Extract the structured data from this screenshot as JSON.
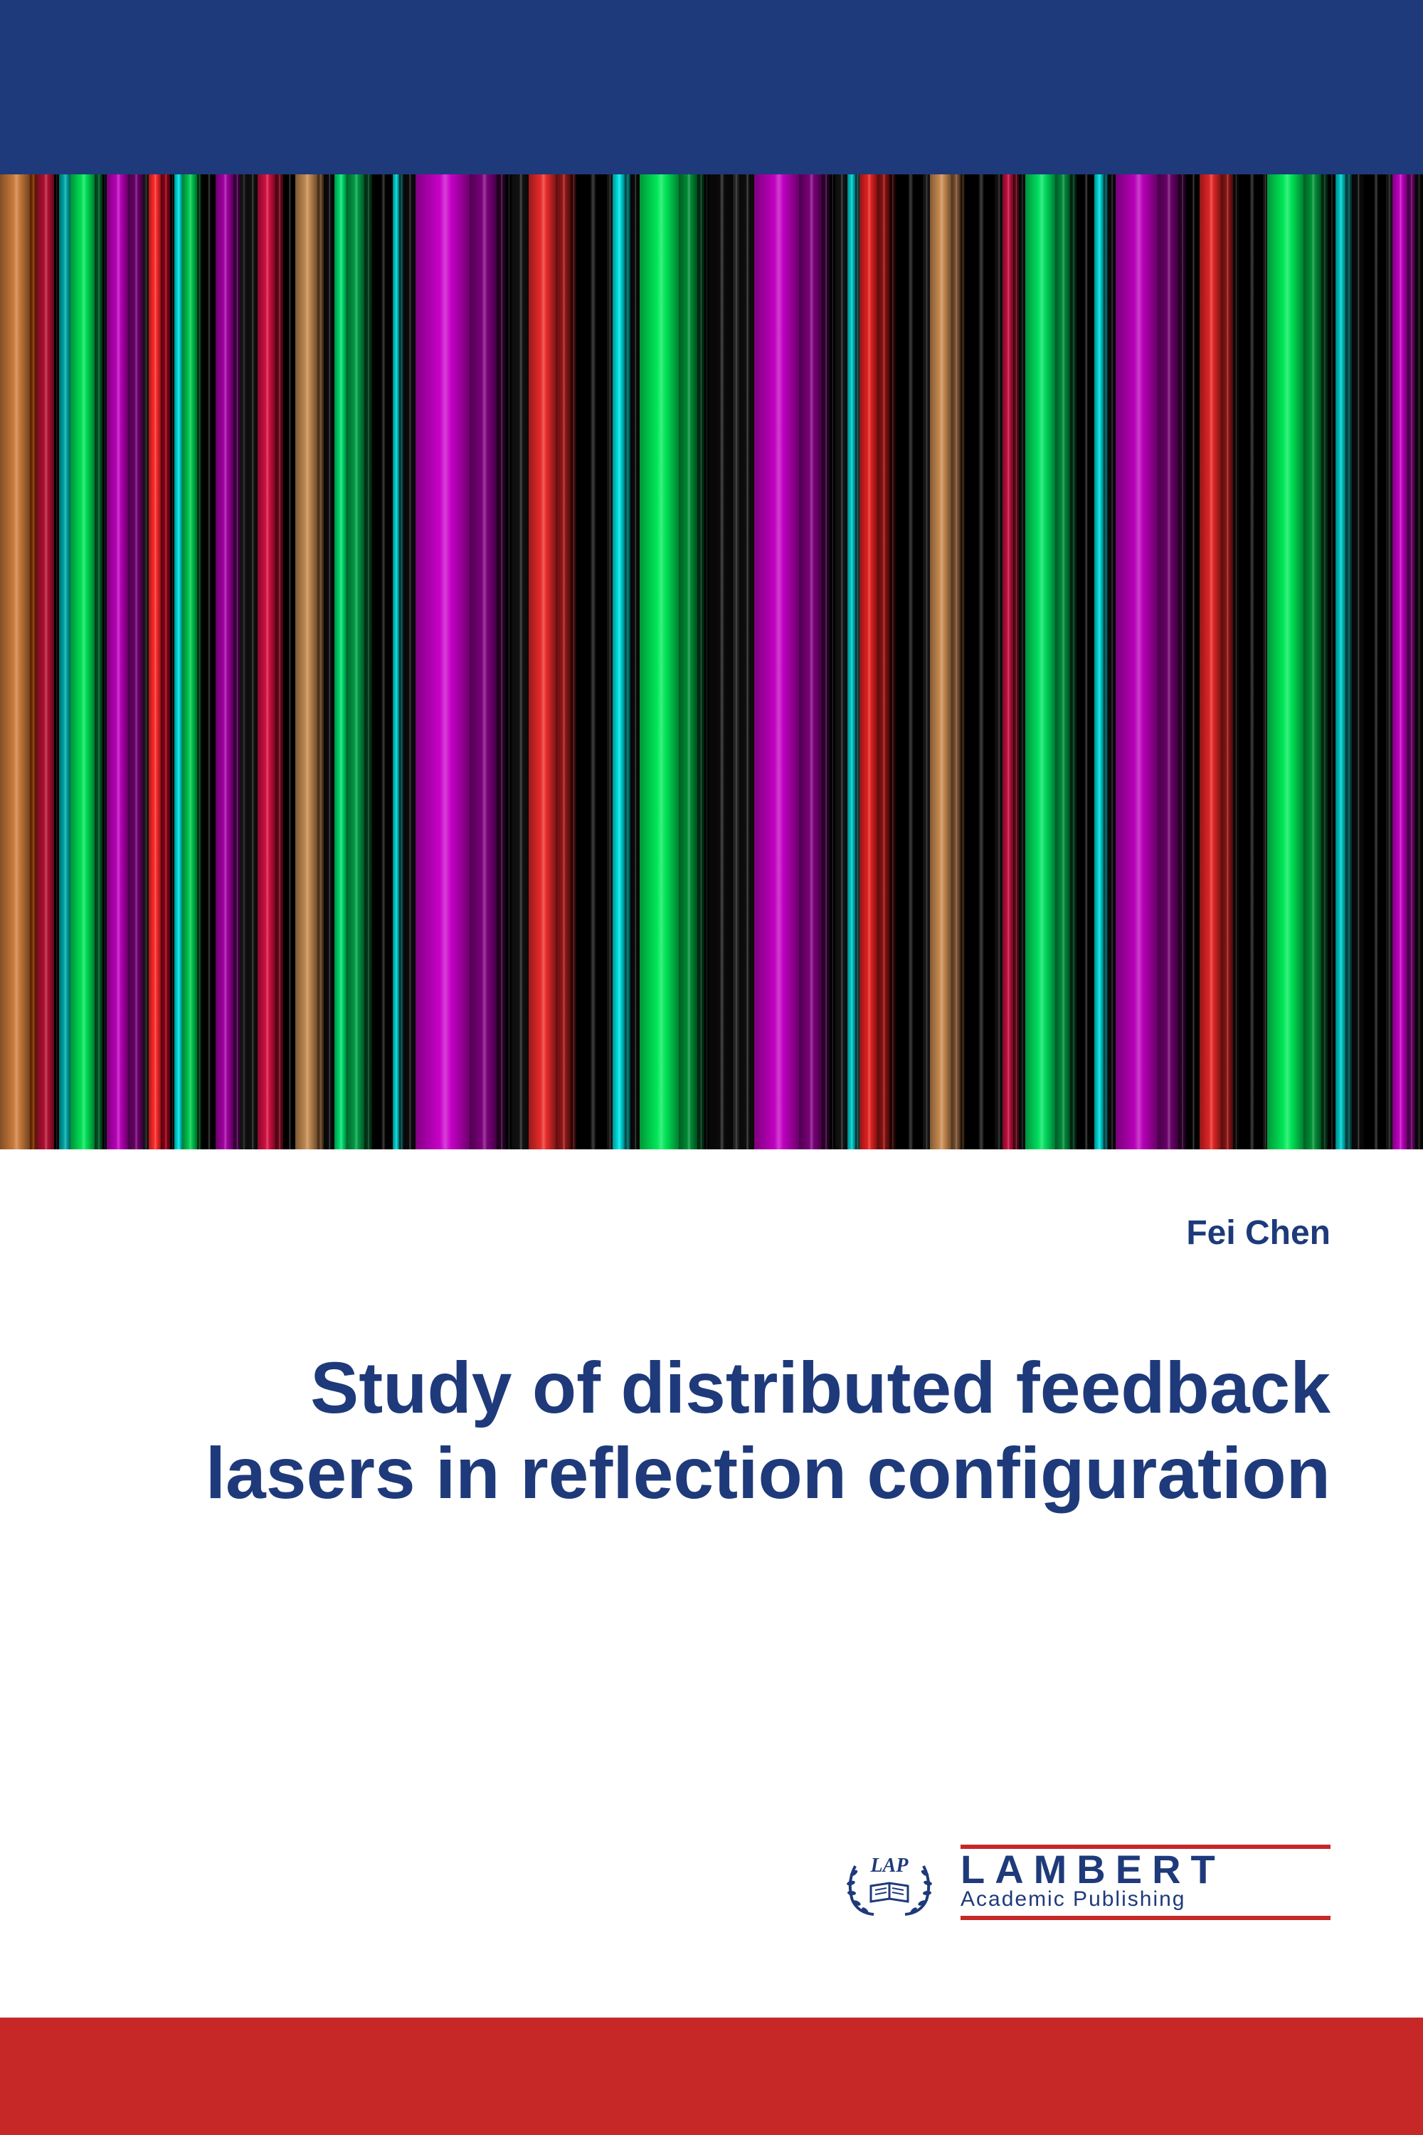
{
  "colors": {
    "navy": "#1e3a7a",
    "red": "#c62828",
    "white": "#ffffff",
    "black": "#000000"
  },
  "author": "Fei Chen",
  "title": "Study of distributed feedback lasers in reflection configuration",
  "publisher": {
    "lap": "LAP",
    "name": "LAMBERT",
    "sub": "Academic Publishing"
  },
  "stripes": [
    {
      "w": 2.0,
      "c": "#c97a3a"
    },
    {
      "w": 0.4,
      "c": "#7d2e00"
    },
    {
      "w": 1.2,
      "c": "#b01030"
    },
    {
      "w": 0.3,
      "c": "#000000"
    },
    {
      "w": 0.8,
      "c": "#00a8a8"
    },
    {
      "w": 1.6,
      "c": "#00e055"
    },
    {
      "w": 0.5,
      "c": "#005522"
    },
    {
      "w": 0.3,
      "c": "#000000"
    },
    {
      "w": 1.4,
      "c": "#b800b8"
    },
    {
      "w": 1.0,
      "c": "#6a006a"
    },
    {
      "w": 0.4,
      "c": "#1a1a1a"
    },
    {
      "w": 0.8,
      "c": "#ff2a2a"
    },
    {
      "w": 0.6,
      "c": "#8a0015"
    },
    {
      "w": 0.3,
      "c": "#000000"
    },
    {
      "w": 0.5,
      "c": "#00dddd"
    },
    {
      "w": 1.0,
      "c": "#00c850"
    },
    {
      "w": 0.3,
      "c": "#003a12"
    },
    {
      "w": 0.9,
      "c": "#000000"
    },
    {
      "w": 1.2,
      "c": "#a000a0"
    },
    {
      "w": 0.5,
      "c": "#440044"
    },
    {
      "w": 0.4,
      "c": "#181818"
    },
    {
      "w": 0.7,
      "c": "#111111"
    },
    {
      "w": 1.2,
      "c": "#d01040"
    },
    {
      "w": 0.5,
      "c": "#6a0818"
    },
    {
      "w": 0.8,
      "c": "#000000"
    },
    {
      "w": 1.5,
      "c": "#c08850"
    },
    {
      "w": 0.4,
      "c": "#604020"
    },
    {
      "w": 0.7,
      "c": "#0a0a0a"
    },
    {
      "w": 0.8,
      "c": "#00e070"
    },
    {
      "w": 1.2,
      "c": "#009944"
    },
    {
      "w": 0.5,
      "c": "#003a18"
    },
    {
      "w": 1.4,
      "c": "#000000"
    },
    {
      "w": 0.4,
      "c": "#00cccc"
    },
    {
      "w": 0.3,
      "c": "#004444"
    },
    {
      "w": 0.8,
      "c": "#0a0a0a"
    },
    {
      "w": 3.6,
      "c": "#c800c8"
    },
    {
      "w": 1.8,
      "c": "#7a007a"
    },
    {
      "w": 0.6,
      "c": "#2a002a"
    },
    {
      "w": 0.4,
      "c": "#000000"
    },
    {
      "w": 1.1,
      "c": "#121212"
    },
    {
      "w": 1.8,
      "c": "#e82a2a"
    },
    {
      "w": 1.0,
      "c": "#901515"
    },
    {
      "w": 0.4,
      "c": "#3a0808"
    },
    {
      "w": 2.0,
      "c": "#000000"
    },
    {
      "w": 0.4,
      "c": "#1a1a1a"
    },
    {
      "w": 0.8,
      "c": "#00e0e0"
    },
    {
      "w": 0.4,
      "c": "#006666"
    },
    {
      "w": 0.6,
      "c": "#0a0a0a"
    },
    {
      "w": 2.6,
      "c": "#00e858"
    },
    {
      "w": 1.2,
      "c": "#008a34"
    },
    {
      "w": 0.5,
      "c": "#003314"
    },
    {
      "w": 0.3,
      "c": "#000000"
    },
    {
      "w": 1.6,
      "c": "#0a0a0a"
    },
    {
      "w": 0.4,
      "c": "#2a2a2a"
    },
    {
      "w": 1.0,
      "c": "#0e0e0e"
    },
    {
      "w": 3.0,
      "c": "#c000c0"
    },
    {
      "w": 1.5,
      "c": "#780078"
    },
    {
      "w": 0.5,
      "c": "#300030"
    },
    {
      "w": 0.4,
      "c": "#000000"
    },
    {
      "w": 0.8,
      "c": "#141414"
    },
    {
      "w": 0.5,
      "c": "#00c8c8"
    },
    {
      "w": 0.3,
      "c": "#004a4a"
    },
    {
      "w": 1.2,
      "c": "#e02020"
    },
    {
      "w": 0.8,
      "c": "#8a1010"
    },
    {
      "w": 0.4,
      "c": "#2a0404"
    },
    {
      "w": 1.8,
      "c": "#000000"
    },
    {
      "w": 0.5,
      "c": "#1a1a1a"
    },
    {
      "w": 1.4,
      "c": "#c88a50"
    },
    {
      "w": 0.6,
      "c": "#785030"
    },
    {
      "w": 0.3,
      "c": "#2a1808"
    },
    {
      "w": 2.0,
      "c": "#000000"
    },
    {
      "w": 0.5,
      "c": "#121212"
    },
    {
      "w": 0.7,
      "c": "#c01040"
    },
    {
      "w": 0.4,
      "c": "#5a0818"
    },
    {
      "w": 0.4,
      "c": "#0a0a0a"
    },
    {
      "w": 2.0,
      "c": "#00e060"
    },
    {
      "w": 1.0,
      "c": "#00883a"
    },
    {
      "w": 0.4,
      "c": "#003015"
    },
    {
      "w": 1.2,
      "c": "#000000"
    },
    {
      "w": 0.6,
      "c": "#00d8d8"
    },
    {
      "w": 0.3,
      "c": "#005555"
    },
    {
      "w": 0.5,
      "c": "#0a0a0a"
    },
    {
      "w": 2.8,
      "c": "#b800b8"
    },
    {
      "w": 1.4,
      "c": "#6a006a"
    },
    {
      "w": 0.5,
      "c": "#2a002a"
    },
    {
      "w": 0.9,
      "c": "#000000"
    },
    {
      "w": 1.4,
      "c": "#e02525"
    },
    {
      "w": 0.8,
      "c": "#881414"
    },
    {
      "w": 0.4,
      "c": "#0a0a0a"
    },
    {
      "w": 1.6,
      "c": "#000000"
    },
    {
      "w": 0.3,
      "c": "#181818"
    },
    {
      "w": 2.4,
      "c": "#00e858"
    },
    {
      "w": 1.2,
      "c": "#009036"
    },
    {
      "w": 0.4,
      "c": "#003014"
    },
    {
      "w": 0.5,
      "c": "#000000"
    },
    {
      "w": 0.7,
      "c": "#00c8c8"
    },
    {
      "w": 0.4,
      "c": "#005050"
    },
    {
      "w": 0.8,
      "c": "#0a0a0a"
    },
    {
      "w": 1.5,
      "c": "#000000"
    },
    {
      "w": 0.4,
      "c": "#1a1a1a"
    },
    {
      "w": 1.0,
      "c": "#c000c0"
    },
    {
      "w": 0.5,
      "c": "#600060"
    },
    {
      "w": 0.5,
      "c": "#0a0a0a"
    }
  ]
}
